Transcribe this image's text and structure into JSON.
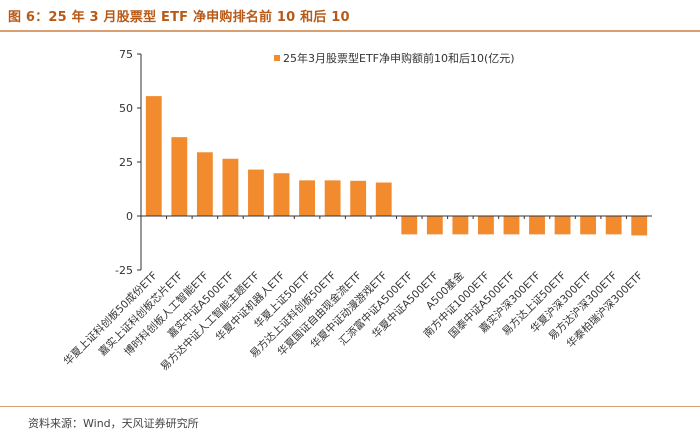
{
  "figure": {
    "title": "图 6：25 年 3 月股票型 ETF 净申购排名前 10 和后 10",
    "source": "资料来源：Wind，天风证券研究所"
  },
  "chart_data": {
    "type": "bar",
    "categories": [
      "华夏上证科创板50成份ETF",
      "嘉实上证科创板芯片ETF",
      "博时科创板人工智能ETF",
      "嘉实中证A500ETF",
      "易方达中证人工智能主题ETF",
      "华夏中证机器人ETF",
      "华夏上证50ETF",
      "易方达上证科创板50ETF",
      "华夏国证自由现金流ETF",
      "华夏中证动漫游戏ETF",
      "汇添富中证A500ETF",
      "华夏中证A500ETF",
      "A500基金",
      "南方中证1000ETF",
      "国泰中证A500ETF",
      "嘉实沪深300ETF",
      "易方达上证50ETF",
      "华夏沪深300ETF",
      "易方达沪深300ETF",
      "华泰柏瑞沪深300ETF"
    ],
    "series": [
      {
        "name": "25年3月股票型ETF净申购额前10和后10(亿元)",
        "values": [
          55.5,
          36.5,
          29.5,
          26.5,
          21.5,
          19.8,
          16.5,
          16.5,
          16.3,
          15.5,
          -8.5,
          -8.5,
          -8.5,
          -8.5,
          -8.5,
          -8.5,
          -8.5,
          -8.5,
          -8.5,
          -9.0
        ]
      }
    ],
    "ylim": [
      -25,
      75
    ],
    "yticks": [
      -25,
      0,
      25,
      50,
      75
    ],
    "grid": false,
    "legend": "top-right",
    "bar_color": "#f28a2e"
  }
}
